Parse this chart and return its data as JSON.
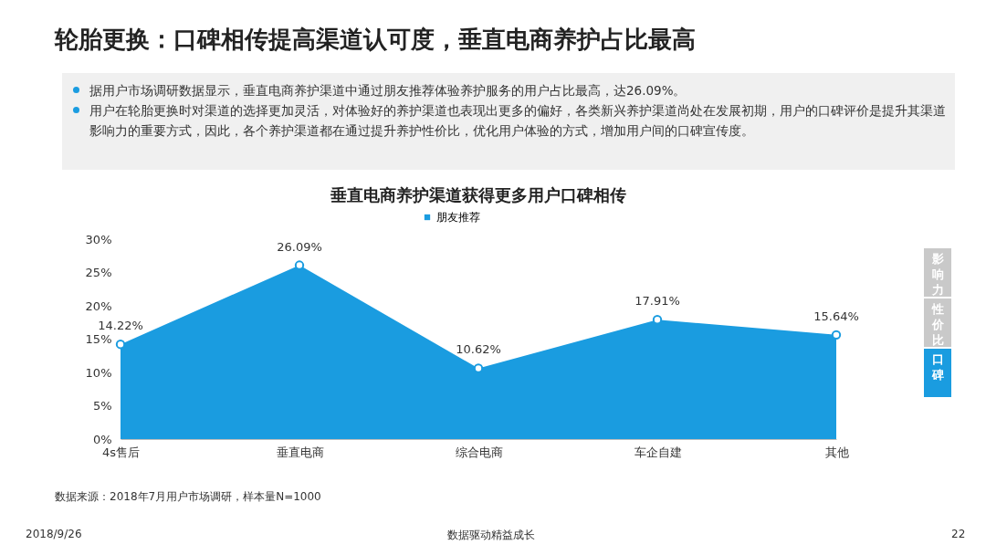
{
  "chart_data": {
    "type": "area",
    "title": "垂直电商养护渠道获得更多用户口碑相传",
    "categories": [
      "4s售后",
      "垂直电商",
      "综合电商",
      "车企自建",
      "其他"
    ],
    "series": [
      {
        "name": "朋友推荐",
        "color": "#1a9ce0",
        "values": [
          14.22,
          26.09,
          10.62,
          17.91,
          15.64
        ],
        "value_labels": [
          "14.22%",
          "26.09%",
          "10.62%",
          "17.91%",
          "15.64%"
        ]
      }
    ],
    "ylim": [
      0,
      30
    ],
    "yticks": [
      {
        "value": 0,
        "label": "0%"
      },
      {
        "value": 5,
        "label": "5%"
      },
      {
        "value": 10,
        "label": "10%"
      },
      {
        "value": 15,
        "label": "15%"
      },
      {
        "value": 20,
        "label": "20%"
      },
      {
        "value": 25,
        "label": "25%"
      },
      {
        "value": 30,
        "label": "30%"
      }
    ],
    "grid": false,
    "legend": "top",
    "marker": "circle",
    "annotations": [
      "轮胎更换：口碑相传提高渠道认可度，垂直电商养护占比最高",
      "据用户市场调研数据显示，垂直电商养护渠道中通过朋友推荐体验养护服务的用户占比最高，达26.09%。",
      "用户在轮胎更换时对渠道的选择更加灵活，对体验好的养护渠道也表现出更多的偏好，各类新兴养护渠道尚处在发展初期，用户的口碑评价是提升其渠道影响力的重要方式，因此，各个养护渠道都在通过提升养护性价比，优化用户体验的方式，增加用户间的口碑宣传度。",
      "数据来源：2018年7月用户市场调研，样本量N=1000",
      "影响力",
      "性价比",
      "口碑",
      "2018/9/26",
      "数据驱动精益成长",
      "22"
    ]
  }
}
